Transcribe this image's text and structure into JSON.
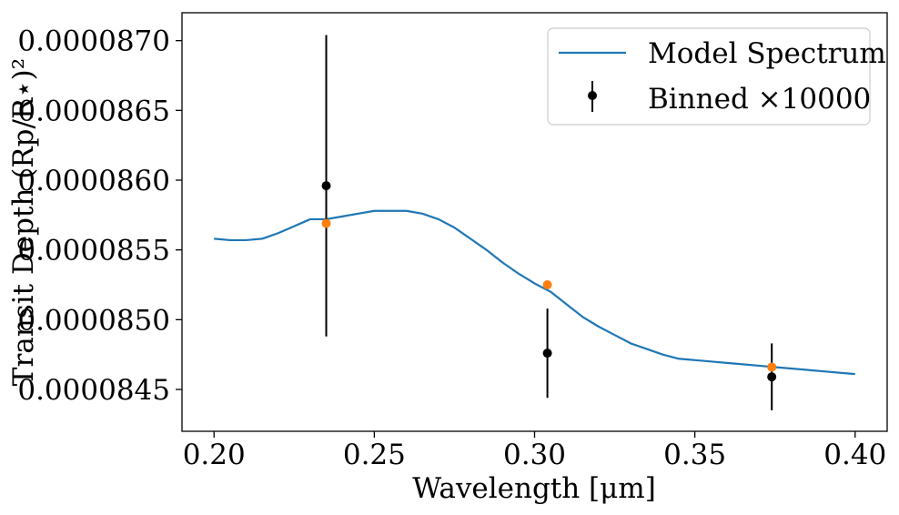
{
  "chart_data": {
    "type": "line",
    "xlabel": "Wavelength [μm]",
    "ylabel": "Transit Depth (Rp/R⋆)²",
    "xlim": [
      0.19,
      0.41
    ],
    "ylim": [
      8.42e-05,
      8.72e-05
    ],
    "x_ticks": [
      0.2,
      0.25,
      0.3,
      0.35,
      0.4
    ],
    "x_tick_labels": [
      "0.20",
      "0.25",
      "0.30",
      "0.35",
      "0.40"
    ],
    "y_ticks": [
      8.45e-05,
      8.5e-05,
      8.55e-05,
      8.6e-05,
      8.65e-05,
      8.7e-05
    ],
    "y_tick_labels": [
      "0.0000845",
      "0.0000850",
      "0.0000855",
      "0.0000860",
      "0.0000865",
      "0.0000870"
    ],
    "grid": false,
    "legend_position": "top-right",
    "series": [
      {
        "name": "Model Spectrum",
        "kind": "line",
        "color": "#1f77b4",
        "x": [
          0.2,
          0.205,
          0.21,
          0.215,
          0.22,
          0.225,
          0.23,
          0.235,
          0.24,
          0.245,
          0.25,
          0.255,
          0.26,
          0.265,
          0.27,
          0.275,
          0.28,
          0.285,
          0.29,
          0.295,
          0.3,
          0.305,
          0.31,
          0.315,
          0.32,
          0.325,
          0.33,
          0.335,
          0.34,
          0.345,
          0.35,
          0.355,
          0.36,
          0.365,
          0.37,
          0.375,
          0.38,
          0.385,
          0.39,
          0.395,
          0.4
        ],
        "y": [
          8.558e-05,
          8.557e-05,
          8.557e-05,
          8.558e-05,
          8.562e-05,
          8.567e-05,
          8.572e-05,
          8.572e-05,
          8.574e-05,
          8.576e-05,
          8.578e-05,
          8.578e-05,
          8.578e-05,
          8.576e-05,
          8.572e-05,
          8.566e-05,
          8.558e-05,
          8.55e-05,
          8.541e-05,
          8.533e-05,
          8.526e-05,
          8.52e-05,
          8.511e-05,
          8.502e-05,
          8.495e-05,
          8.489e-05,
          8.483e-05,
          8.479e-05,
          8.475e-05,
          8.472e-05,
          8.471e-05,
          8.47e-05,
          8.469e-05,
          8.468e-05,
          8.467e-05,
          8.466e-05,
          8.465e-05,
          8.464e-05,
          8.463e-05,
          8.462e-05,
          8.461e-05
        ]
      },
      {
        "name": "Binned ×10000",
        "kind": "errorbar",
        "color": "#000000",
        "x": [
          0.235,
          0.304,
          0.374
        ],
        "y": [
          8.596e-05,
          8.476e-05,
          8.459e-05
        ],
        "yerr": [
          1.08e-06,
          3.2e-07,
          2.4e-07
        ]
      },
      {
        "kind": "scatter",
        "color": "#ff7f0e",
        "x": [
          0.235,
          0.304,
          0.374
        ],
        "y": [
          8.569e-05,
          8.525e-05,
          8.466e-05
        ]
      }
    ]
  }
}
